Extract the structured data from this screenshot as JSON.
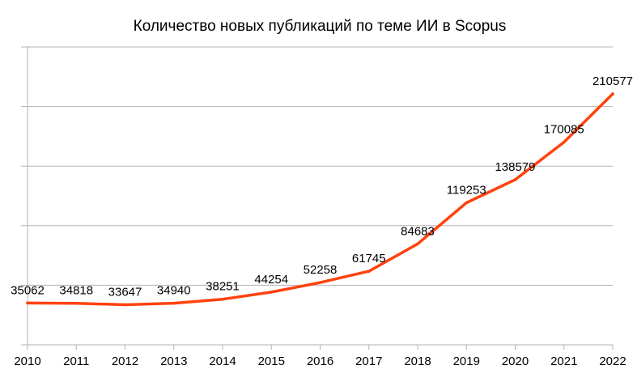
{
  "chart_data": {
    "type": "line",
    "title": "Количество новых публикаций по теме ИИ в Scopus",
    "xlabel": "",
    "ylabel": "",
    "categories": [
      "2010",
      "2011",
      "2012",
      "2013",
      "2014",
      "2015",
      "2016",
      "2017",
      "2018",
      "2019",
      "2020",
      "2021",
      "2022"
    ],
    "series": [
      {
        "values": [
          35062,
          34818,
          33647,
          34940,
          38251,
          44254,
          52258,
          61745,
          84683,
          119253,
          138579,
          170085,
          210577
        ],
        "data_labels": [
          "35062",
          "34818",
          "33647",
          "34940",
          "38251",
          "44254",
          "52258",
          "61745",
          "84683",
          "119253",
          "138579",
          "170085",
          "210577"
        ],
        "color": "#ff420e"
      }
    ],
    "ylim": [
      0,
      250000
    ],
    "y_ticks": [
      0,
      50000,
      100000,
      150000,
      200000,
      250000
    ],
    "y_tick_labels_shown": false,
    "grid": "horizontal",
    "legend": "none",
    "colors": {
      "line": "#ff420e",
      "grid": "#b3b3b3",
      "axis": "#b3b3b3",
      "text": "#000000"
    }
  }
}
